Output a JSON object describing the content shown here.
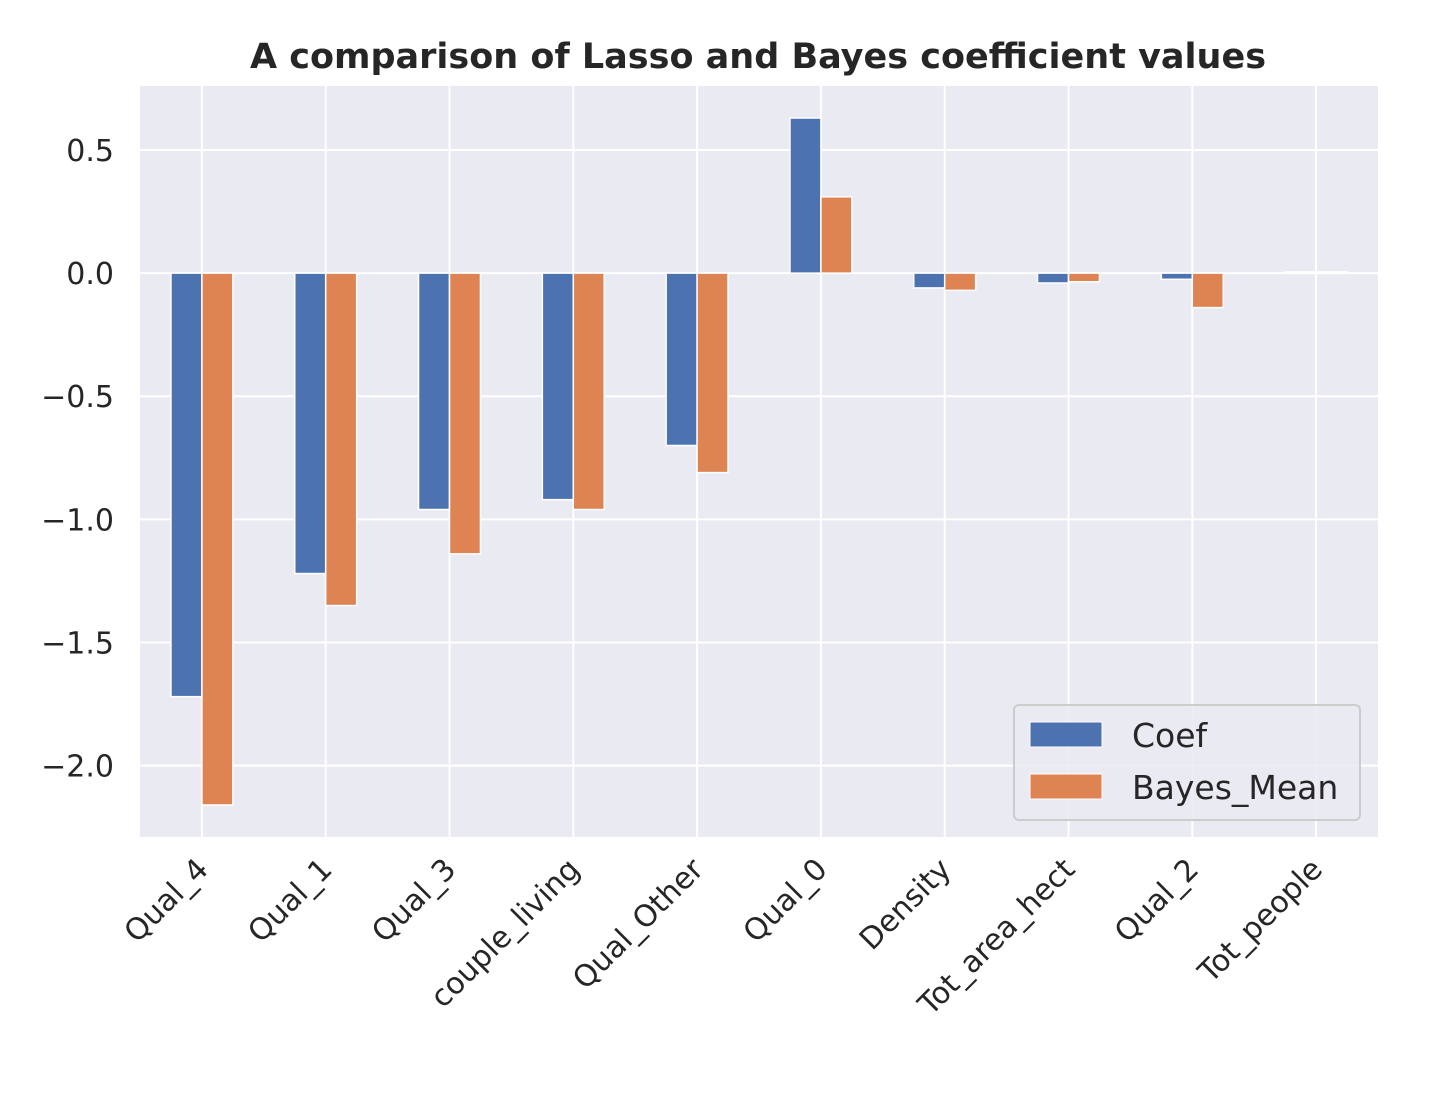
{
  "chart_data": {
    "type": "bar",
    "title": "A comparison of Lasso and Bayes coefficient values",
    "xlabel": "",
    "ylabel": "",
    "categories": [
      "Qual_4",
      "Qual_1",
      "Qual_3",
      "couple_living",
      "Qual_Other",
      "Qual_0",
      "Density",
      "Tot_area_hect",
      "Qual_2",
      "Tot_people"
    ],
    "series": [
      {
        "name": "Coef",
        "color": "#4C72B0",
        "values": [
          -1.72,
          -1.22,
          -0.96,
          -0.92,
          -0.7,
          0.63,
          -0.06,
          -0.04,
          -0.025,
          0.005
        ]
      },
      {
        "name": "Bayes_Mean",
        "color": "#DD8452",
        "values": [
          -2.16,
          -1.35,
          -1.14,
          -0.96,
          -0.81,
          0.31,
          -0.07,
          -0.035,
          -0.14,
          0.005
        ]
      }
    ],
    "ylim": [
      -2.29,
      0.76
    ],
    "yticks": [
      0.5,
      0.0,
      -0.5,
      -1.0,
      -1.5,
      -2.0
    ],
    "ytick_labels": [
      "0.5",
      "0.0",
      "−0.5",
      "−1.0",
      "−1.5",
      "−2.0"
    ],
    "grid": true,
    "background": "#EAEAF2",
    "legend_position": "lower-right"
  }
}
